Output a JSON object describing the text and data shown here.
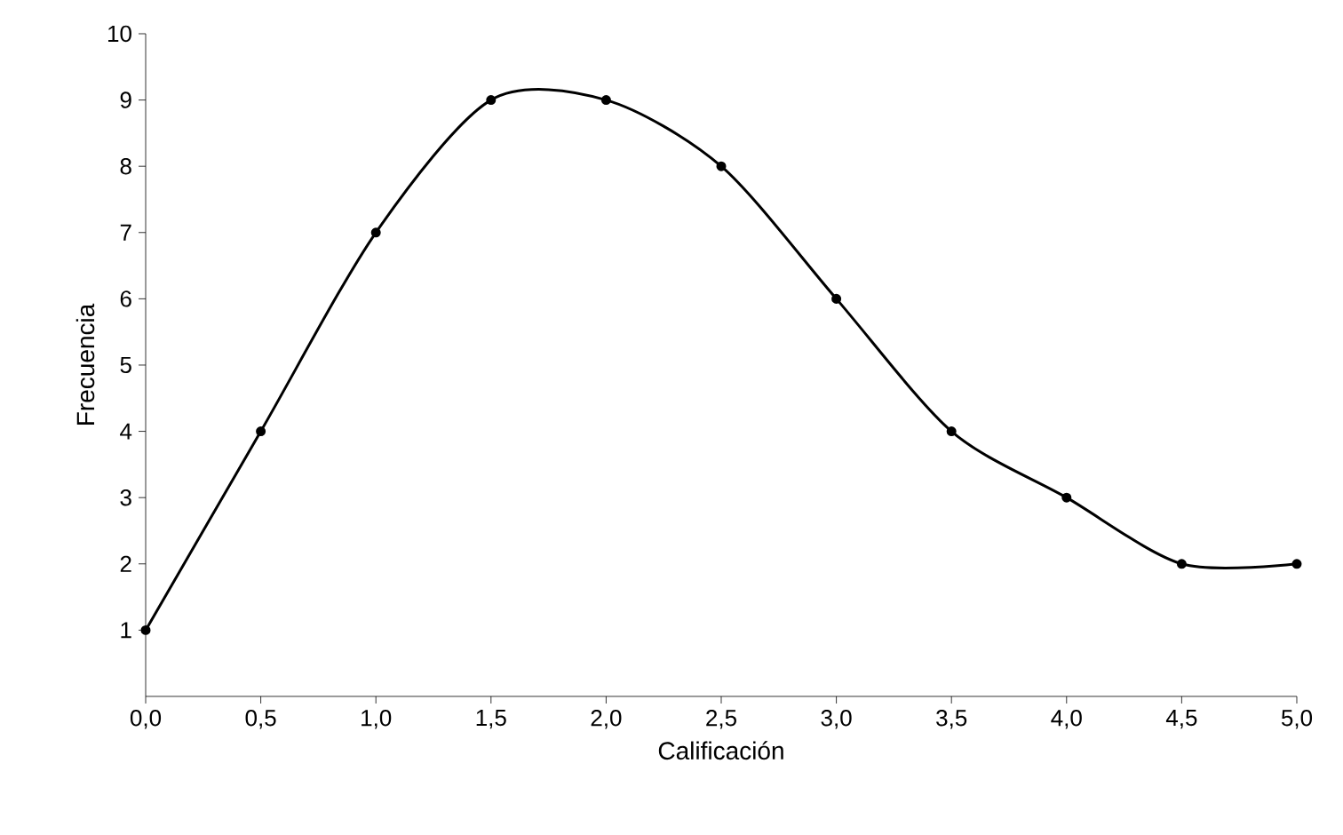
{
  "chart_data": {
    "type": "line",
    "xlabel": "Calificación",
    "ylabel": "Frecuencia",
    "x": [
      0,
      0.5,
      1,
      1.5,
      2,
      2.5,
      3,
      3.5,
      4,
      4.5,
      5
    ],
    "series": [
      {
        "color": "#000000",
        "values": [
          1,
          4,
          7,
          9,
          9,
          8,
          6,
          4,
          3,
          2,
          2
        ]
      }
    ],
    "xlim": [
      0,
      5
    ],
    "xticks": [
      {
        "value": 0,
        "label": "0,0"
      },
      {
        "value": 0.5,
        "label": "0,5"
      },
      {
        "value": 1,
        "label": "1,0"
      },
      {
        "value": 1.5,
        "label": "1,5"
      },
      {
        "value": 2,
        "label": "2,0"
      },
      {
        "value": 2.5,
        "label": "2,5"
      },
      {
        "value": 3,
        "label": "3,0"
      },
      {
        "value": 3.5,
        "label": "3,5"
      },
      {
        "value": 4,
        "label": "4,0"
      },
      {
        "value": 4.5,
        "label": "4,5"
      },
      {
        "value": 5,
        "label": "5,0"
      }
    ],
    "ylim": [
      0,
      10
    ],
    "yticks": [
      1,
      2,
      3,
      4,
      5,
      6,
      7,
      8,
      9,
      10
    ],
    "grid": false,
    "marker": "circle",
    "line_style": "solid"
  }
}
